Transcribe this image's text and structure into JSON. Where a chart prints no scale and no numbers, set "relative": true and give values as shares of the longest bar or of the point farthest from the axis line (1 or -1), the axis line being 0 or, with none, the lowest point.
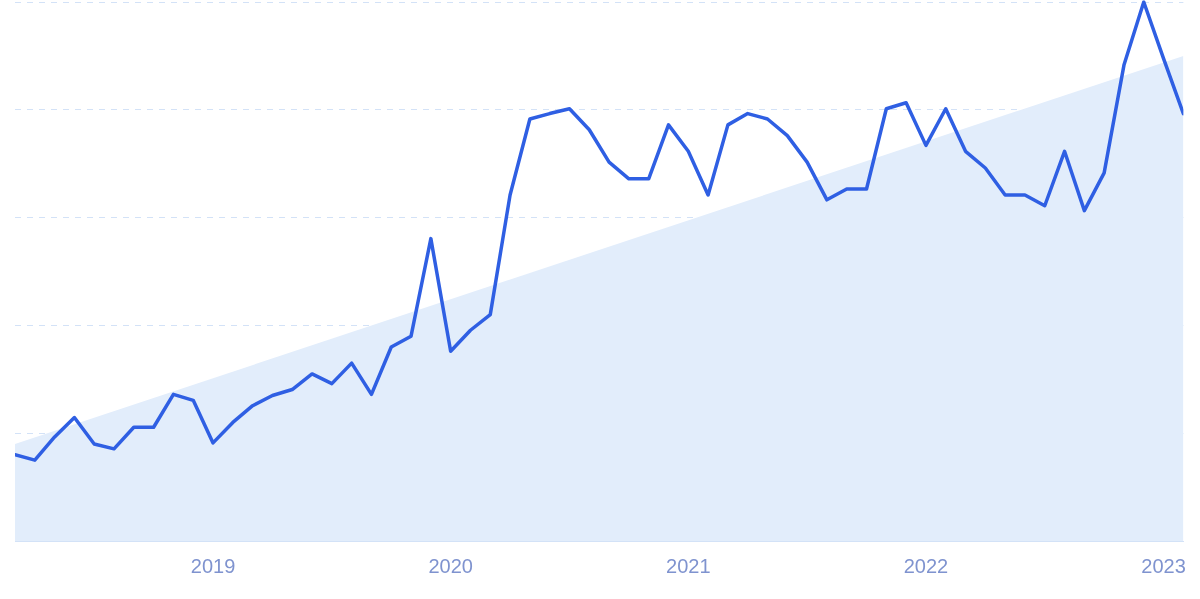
{
  "chart_data": {
    "type": "line",
    "relative": true,
    "grid": "y",
    "xlim": [
      "2018-03",
      "2023-02"
    ],
    "xticks": [
      "2019",
      "2020",
      "2021",
      "2022",
      "2023"
    ],
    "x": [
      "2018-03",
      "2018-04",
      "2018-05",
      "2018-06",
      "2018-07",
      "2018-08",
      "2018-09",
      "2018-10",
      "2018-11",
      "2018-12",
      "2019-01",
      "2019-02",
      "2019-03",
      "2019-04",
      "2019-05",
      "2019-06",
      "2019-07",
      "2019-08",
      "2019-09",
      "2019-10",
      "2019-11",
      "2019-12",
      "2020-01",
      "2020-02",
      "2020-03",
      "2020-04",
      "2020-05",
      "2020-06",
      "2020-07",
      "2020-08",
      "2020-09",
      "2020-10",
      "2020-11",
      "2020-12",
      "2021-01",
      "2021-02",
      "2021-03",
      "2021-04",
      "2021-05",
      "2021-06",
      "2021-07",
      "2021-08",
      "2021-09",
      "2021-10",
      "2021-11",
      "2021-12",
      "2022-01",
      "2022-02",
      "2022-03",
      "2022-04",
      "2022-05",
      "2022-06",
      "2022-07",
      "2022-08",
      "2022-09",
      "2022-10",
      "2022-11",
      "2022-12",
      "2023-01",
      "2023-02"
    ],
    "series": [
      {
        "type": "area",
        "color": "#e2edfb",
        "x": [
          "2018-03",
          "2023-02"
        ],
        "values": [
          0.18,
          0.9
        ]
      },
      {
        "color": "#2f5fe3",
        "values": [
          0.16,
          0.15,
          0.193,
          0.229,
          0.18,
          0.171,
          0.211,
          0.211,
          0.272,
          0.261,
          0.182,
          0.22,
          0.251,
          0.27,
          0.281,
          0.31,
          0.292,
          0.33,
          0.272,
          0.36,
          0.38,
          0.561,
          0.352,
          0.391,
          0.42,
          0.642,
          0.783,
          0.793,
          0.802,
          0.763,
          0.703,
          0.672,
          0.672,
          0.772,
          0.723,
          0.642,
          0.772,
          0.793,
          0.783,
          0.752,
          0.703,
          0.633,
          0.653,
          0.653,
          0.802,
          0.813,
          0.734,
          0.802,
          0.723,
          0.692,
          0.642,
          0.642,
          0.622,
          0.723,
          0.613,
          0.683,
          0.883,
          1,
          0.895,
          0.793
        ]
      }
    ]
  }
}
